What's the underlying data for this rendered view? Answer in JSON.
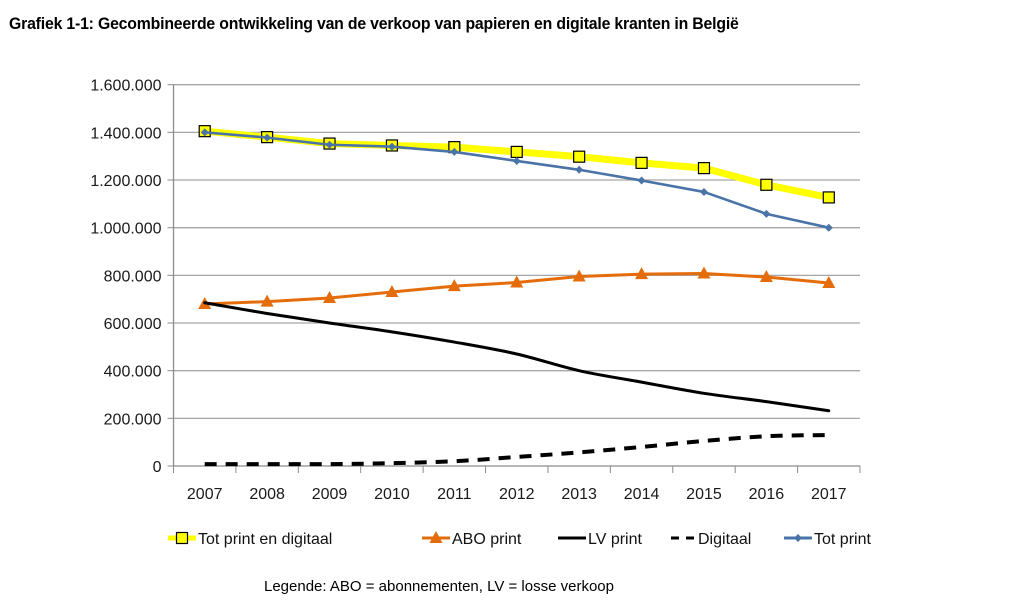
{
  "chart_data": {
    "type": "line",
    "title": "Grafiek 1-1: Gecombineerde ontwikkeling van de verkoop van papieren en digitale kranten in België",
    "xlabel": "",
    "ylabel": "",
    "categories": [
      "2007",
      "2008",
      "2009",
      "2010",
      "2011",
      "2012",
      "2013",
      "2014",
      "2015",
      "2016",
      "2017"
    ],
    "ylim": [
      0,
      1600000
    ],
    "yticks": [
      0,
      200000,
      400000,
      600000,
      800000,
      1000000,
      1200000,
      1400000,
      1600000
    ],
    "ytick_labels": [
      "0",
      "200.000",
      "400.000",
      "600.000",
      "800.000",
      "1.000.000",
      "1.200.000",
      "1.400.000",
      "1.600.000"
    ],
    "grid": true,
    "legend_position": "bottom",
    "series": [
      {
        "name": "Tot print en digitaal",
        "color": "#ffff00",
        "marker": "square",
        "marker_color": "#ffff00",
        "marker_edge": "#000000",
        "dash": "solid",
        "values": [
          1405000,
          1380000,
          1353000,
          1345000,
          1338000,
          1318000,
          1298000,
          1272000,
          1250000,
          1180000,
          1127000
        ]
      },
      {
        "name": "ABO print",
        "color": "#e46c0a",
        "marker": "triangle",
        "marker_color": "#e46c0a",
        "dash": "solid",
        "values": [
          680000,
          690000,
          705000,
          730000,
          755000,
          770000,
          795000,
          805000,
          808000,
          793000,
          768000
        ]
      },
      {
        "name": "LV print",
        "color": "#000000",
        "marker": "none",
        "dash": "solid",
        "values": [
          685000,
          640000,
          600000,
          563000,
          520000,
          470000,
          400000,
          352000,
          305000,
          270000,
          232000
        ]
      },
      {
        "name": "Digitaal",
        "color": "#000000",
        "marker": "none",
        "dash": "dashed",
        "values": [
          8000,
          8000,
          8000,
          12000,
          20000,
          38000,
          57000,
          80000,
          105000,
          125000,
          130000
        ]
      },
      {
        "name": "Tot print",
        "color": "#4a74a8",
        "marker": "diamond",
        "marker_color": "#4a74a8",
        "dash": "solid",
        "values": [
          1400000,
          1378000,
          1348000,
          1340000,
          1318000,
          1280000,
          1243000,
          1198000,
          1150000,
          1058000,
          1000000
        ]
      }
    ],
    "footnote": "Legende: ABO = abonnementen, LV = losse verkoop"
  }
}
